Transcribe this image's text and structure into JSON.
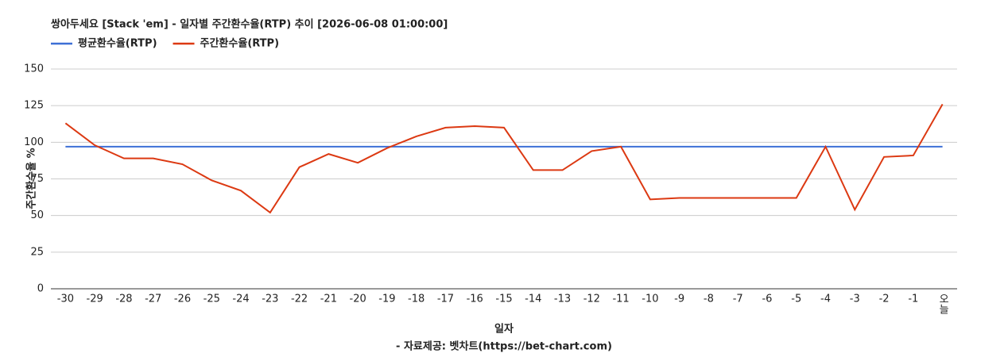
{
  "chart_data": {
    "type": "line",
    "title": "쌍아두세요 [Stack 'em] - 일자별 주간환수율(RTP) 추이 [2026-06-08 01:00:00]",
    "x_label": "일자",
    "y_label": "주간환수율 %",
    "footer": "- 자료제공: 벳차트(https://bet-chart.com)",
    "categories": [
      "-30",
      "-29",
      "-28",
      "-27",
      "-26",
      "-25",
      "-24",
      "-23",
      "-22",
      "-21",
      "-20",
      "-19",
      "-18",
      "-17",
      "-16",
      "-15",
      "-14",
      "-13",
      "-12",
      "-11",
      "-10",
      "-9",
      "-8",
      "-7",
      "-6",
      "-5",
      "-4",
      "-3",
      "-2",
      "-1",
      "오늘"
    ],
    "series": [
      {
        "name": "평균환수율(RTP)",
        "color": "#3d6fd6",
        "values": [
          97,
          97,
          97,
          97,
          97,
          97,
          97,
          97,
          97,
          97,
          97,
          97,
          97,
          97,
          97,
          97,
          97,
          97,
          97,
          97,
          97,
          97,
          97,
          97,
          97,
          97,
          97,
          97,
          97,
          97,
          97
        ]
      },
      {
        "name": "주간환수율(RTP)",
        "color": "#dc3912",
        "values": [
          113,
          98,
          89,
          89,
          85,
          74,
          67,
          52,
          83,
          92,
          86,
          96,
          104,
          110,
          111,
          110,
          81,
          81,
          94,
          97,
          61,
          62,
          62,
          62,
          62,
          62,
          97,
          54,
          90,
          91,
          126
        ]
      }
    ],
    "ylim": [
      0,
      150
    ],
    "yticks": [
      0,
      25,
      50,
      75,
      100,
      125,
      150
    ],
    "grid": true
  }
}
